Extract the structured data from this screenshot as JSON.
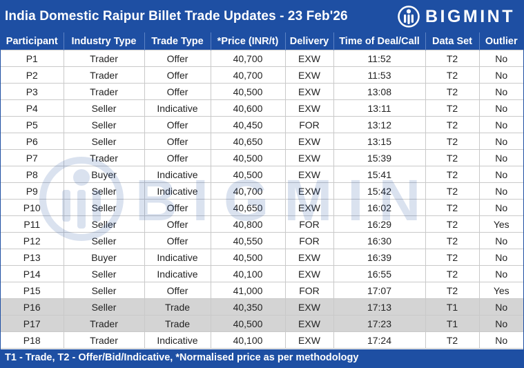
{
  "title": "India Domestic Raipur Billet Trade Updates - 23 Feb'26",
  "brand": {
    "name": "BIGMINT",
    "logo_icon": "bigmint-logo-icon"
  },
  "watermark_text": "BIGMINT",
  "colors": {
    "header_blue": "#1e4fa3",
    "trade_row_gray": "#d4d4d4"
  },
  "table": {
    "columns": [
      "Participant",
      "Industry Type",
      "Trade Type",
      "*Price (INR/t)",
      "Delivery",
      "Time of Deal/Call",
      "Data Set",
      "Outlier"
    ],
    "rows": [
      {
        "participant": "P1",
        "industry": "Trader",
        "trade_type": "Offer",
        "price": "40,700",
        "delivery": "EXW",
        "time": "11:52",
        "data_set": "T2",
        "outlier": "No"
      },
      {
        "participant": "P2",
        "industry": "Trader",
        "trade_type": "Offer",
        "price": "40,700",
        "delivery": "EXW",
        "time": "11:53",
        "data_set": "T2",
        "outlier": "No"
      },
      {
        "participant": "P3",
        "industry": "Trader",
        "trade_type": "Offer",
        "price": "40,500",
        "delivery": "EXW",
        "time": "13:08",
        "data_set": "T2",
        "outlier": "No"
      },
      {
        "participant": "P4",
        "industry": "Seller",
        "trade_type": "Indicative",
        "price": "40,600",
        "delivery": "EXW",
        "time": "13:11",
        "data_set": "T2",
        "outlier": "No"
      },
      {
        "participant": "P5",
        "industry": "Seller",
        "trade_type": "Offer",
        "price": "40,450",
        "delivery": "FOR",
        "time": "13:12",
        "data_set": "T2",
        "outlier": "No"
      },
      {
        "participant": "P6",
        "industry": "Seller",
        "trade_type": "Offer",
        "price": "40,650",
        "delivery": "EXW",
        "time": "13:15",
        "data_set": "T2",
        "outlier": "No"
      },
      {
        "participant": "P7",
        "industry": "Trader",
        "trade_type": "Offer",
        "price": "40,500",
        "delivery": "EXW",
        "time": "15:39",
        "data_set": "T2",
        "outlier": "No"
      },
      {
        "participant": "P8",
        "industry": "Buyer",
        "trade_type": "Indicative",
        "price": "40,500",
        "delivery": "EXW",
        "time": "15:41",
        "data_set": "T2",
        "outlier": "No"
      },
      {
        "participant": "P9",
        "industry": "Seller",
        "trade_type": "Indicative",
        "price": "40,700",
        "delivery": "EXW",
        "time": "15:42",
        "data_set": "T2",
        "outlier": "No"
      },
      {
        "participant": "P10",
        "industry": "Seller",
        "trade_type": "Offer",
        "price": "40,650",
        "delivery": "EXW",
        "time": "16:02",
        "data_set": "T2",
        "outlier": "No"
      },
      {
        "participant": "P11",
        "industry": "Seller",
        "trade_type": "Offer",
        "price": "40,800",
        "delivery": "FOR",
        "time": "16:29",
        "data_set": "T2",
        "outlier": "Yes"
      },
      {
        "participant": "P12",
        "industry": "Seller",
        "trade_type": "Offer",
        "price": "40,550",
        "delivery": "FOR",
        "time": "16:30",
        "data_set": "T2",
        "outlier": "No"
      },
      {
        "participant": "P13",
        "industry": "Buyer",
        "trade_type": "Indicative",
        "price": "40,500",
        "delivery": "EXW",
        "time": "16:39",
        "data_set": "T2",
        "outlier": "No"
      },
      {
        "participant": "P14",
        "industry": "Seller",
        "trade_type": "Indicative",
        "price": "40,100",
        "delivery": "EXW",
        "time": "16:55",
        "data_set": "T2",
        "outlier": "No"
      },
      {
        "participant": "P15",
        "industry": "Seller",
        "trade_type": "Offer",
        "price": "41,000",
        "delivery": "FOR",
        "time": "17:07",
        "data_set": "T2",
        "outlier": "Yes"
      },
      {
        "participant": "P16",
        "industry": "Seller",
        "trade_type": "Trade",
        "price": "40,350",
        "delivery": "EXW",
        "time": "17:13",
        "data_set": "T1",
        "outlier": "No",
        "highlight": true
      },
      {
        "participant": "P17",
        "industry": "Trader",
        "trade_type": "Trade",
        "price": "40,500",
        "delivery": "EXW",
        "time": "17:23",
        "data_set": "T1",
        "outlier": "No",
        "highlight": true
      },
      {
        "participant": "P18",
        "industry": "Trader",
        "trade_type": "Indicative",
        "price": "40,100",
        "delivery": "EXW",
        "time": "17:24",
        "data_set": "T2",
        "outlier": "No"
      }
    ]
  },
  "footer": "T1 - Trade, T2 - Offer/Bid/Indicative, *Normalised price as per methodology"
}
